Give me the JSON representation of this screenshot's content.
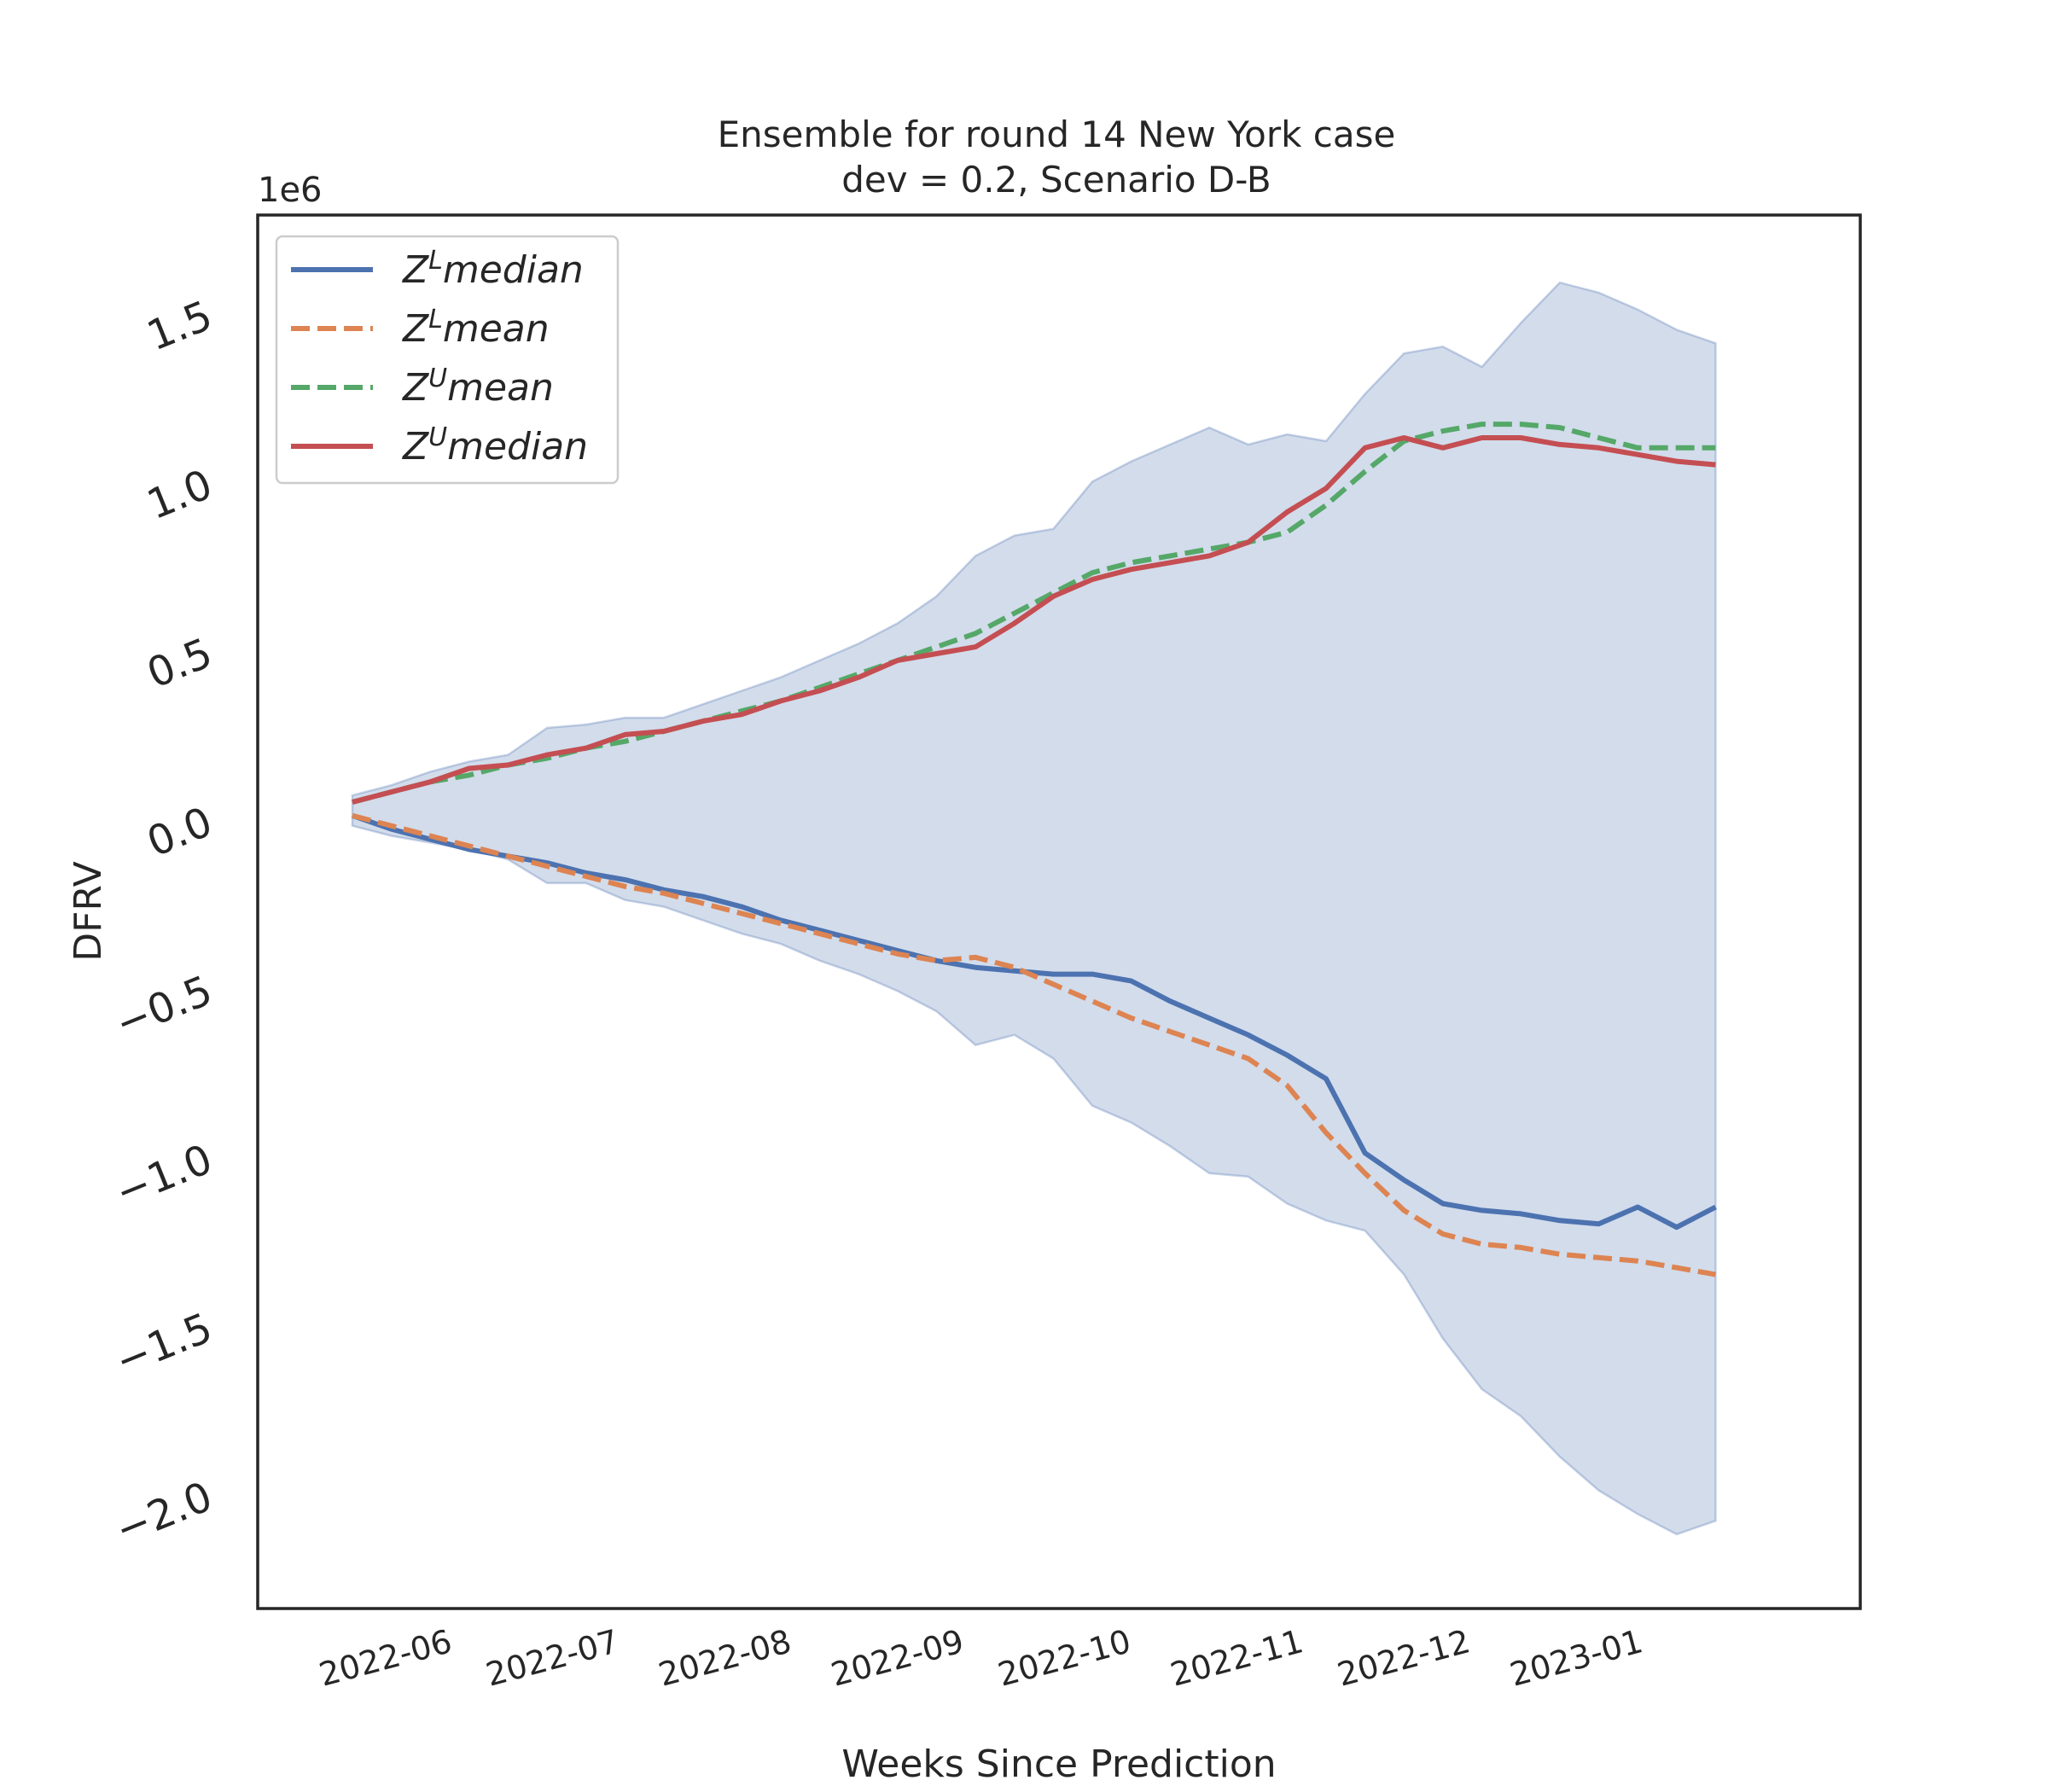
{
  "chart_data": {
    "type": "line",
    "title": "Ensemble for round 14 New York case",
    "subtitle": "dev = 0.2, Scenario D-B",
    "xlabel": "Weeks Since Prediction",
    "ylabel": "DFRV",
    "y_offset_label": "1e6",
    "y_scale": 1000000,
    "xlim": [
      "2022-04-28",
      "2023-02-10"
    ],
    "ylim": [
      -2.35,
      1.78
    ],
    "x_tick_labels": [
      "2022-06",
      "2022-07",
      "2022-08",
      "2022-09",
      "2022-10",
      "2022-11",
      "2022-12",
      "2023-01"
    ],
    "x_tick_dates": [
      "2022-06-01",
      "2022-07-01",
      "2022-08-01",
      "2022-09-01",
      "2022-10-01",
      "2022-11-01",
      "2022-12-01",
      "2023-01-01"
    ],
    "y_ticks": [
      -2.0,
      -1.5,
      -1.0,
      -0.5,
      0.0,
      0.5,
      1.0,
      1.5
    ],
    "y_tick_labels": [
      "−2.0",
      "−1.5",
      "−1.0",
      "−0.5",
      "0.0",
      "0.5",
      "1.0",
      "1.5"
    ],
    "grid": false,
    "legend_position": "top-left",
    "x": [
      "2022-05-15",
      "2022-05-22",
      "2022-05-29",
      "2022-06-05",
      "2022-06-12",
      "2022-06-19",
      "2022-06-26",
      "2022-07-03",
      "2022-07-10",
      "2022-07-17",
      "2022-07-24",
      "2022-07-31",
      "2022-08-07",
      "2022-08-14",
      "2022-08-21",
      "2022-08-28",
      "2022-09-04",
      "2022-09-11",
      "2022-09-18",
      "2022-09-25",
      "2022-10-02",
      "2022-10-09",
      "2022-10-16",
      "2022-10-23",
      "2022-10-30",
      "2022-11-06",
      "2022-11-13",
      "2022-11-20",
      "2022-11-27",
      "2022-12-04",
      "2022-12-11",
      "2022-12-18",
      "2022-12-25",
      "2023-01-01",
      "2023-01-08",
      "2023-01-15"
    ],
    "series": [
      {
        "name": "Z^L median",
        "legend_main": "Z",
        "legend_sup": "L",
        "legend_rest": "median",
        "style": "solid",
        "color": "#4c72b0",
        "values": [
          0.0,
          -0.04,
          -0.07,
          -0.1,
          -0.12,
          -0.14,
          -0.17,
          -0.19,
          -0.22,
          -0.24,
          -0.27,
          -0.31,
          -0.34,
          -0.37,
          -0.4,
          -0.43,
          -0.45,
          -0.46,
          -0.47,
          -0.47,
          -0.49,
          -0.55,
          -0.6,
          -0.65,
          -0.71,
          -0.78,
          -1.0,
          -1.08,
          -1.15,
          -1.17,
          -1.18,
          -1.2,
          -1.21,
          -1.16,
          -1.22,
          -1.16
        ]
      },
      {
        "name": "Z^L mean",
        "legend_main": "Z",
        "legend_sup": "L",
        "legend_rest": "mean",
        "style": "dashed",
        "color": "#dd8452",
        "values": [
          0.0,
          -0.03,
          -0.06,
          -0.09,
          -0.12,
          -0.15,
          -0.18,
          -0.21,
          -0.23,
          -0.26,
          -0.29,
          -0.32,
          -0.35,
          -0.38,
          -0.41,
          -0.43,
          -0.42,
          -0.45,
          -0.5,
          -0.55,
          -0.6,
          -0.64,
          -0.68,
          -0.72,
          -0.8,
          -0.94,
          -1.06,
          -1.17,
          -1.24,
          -1.27,
          -1.28,
          -1.3,
          -1.31,
          -1.32,
          -1.34,
          -1.36
        ]
      },
      {
        "name": "Z^U mean",
        "legend_main": "Z",
        "legend_sup": "U",
        "legend_rest": "mean",
        "style": "dashed",
        "color": "#55a868",
        "values": [
          0.04,
          0.07,
          0.1,
          0.12,
          0.15,
          0.17,
          0.2,
          0.22,
          0.25,
          0.28,
          0.31,
          0.34,
          0.38,
          0.42,
          0.46,
          0.5,
          0.54,
          0.6,
          0.66,
          0.72,
          0.75,
          0.77,
          0.79,
          0.81,
          0.84,
          0.92,
          1.02,
          1.11,
          1.14,
          1.16,
          1.16,
          1.15,
          1.12,
          1.09,
          1.09,
          1.09
        ]
      },
      {
        "name": "Z^U median",
        "legend_main": "Z",
        "legend_sup": "U",
        "legend_rest": "median",
        "style": "solid",
        "color": "#c44e52",
        "values": [
          0.04,
          0.07,
          0.1,
          0.14,
          0.15,
          0.18,
          0.2,
          0.24,
          0.25,
          0.28,
          0.3,
          0.34,
          0.37,
          0.41,
          0.46,
          0.48,
          0.5,
          0.57,
          0.65,
          0.7,
          0.73,
          0.75,
          0.77,
          0.81,
          0.9,
          0.97,
          1.09,
          1.12,
          1.09,
          1.12,
          1.12,
          1.1,
          1.09,
          1.07,
          1.05,
          1.04
        ]
      }
    ],
    "band": {
      "color": "#4c72b0",
      "upper": [
        0.06,
        0.09,
        0.13,
        0.16,
        0.18,
        0.26,
        0.27,
        0.29,
        0.29,
        0.33,
        0.37,
        0.41,
        0.46,
        0.51,
        0.57,
        0.65,
        0.77,
        0.83,
        0.85,
        0.99,
        1.05,
        1.1,
        1.15,
        1.1,
        1.13,
        1.11,
        1.25,
        1.37,
        1.39,
        1.33,
        1.46,
        1.58,
        1.55,
        1.5,
        1.44,
        1.4
      ],
      "lower": [
        -0.03,
        -0.06,
        -0.08,
        -0.1,
        -0.13,
        -0.2,
        -0.2,
        -0.25,
        -0.27,
        -0.31,
        -0.35,
        -0.38,
        -0.43,
        -0.47,
        -0.52,
        -0.58,
        -0.68,
        -0.65,
        -0.72,
        -0.86,
        -0.91,
        -0.98,
        -1.06,
        -1.07,
        -1.15,
        -1.2,
        -1.23,
        -1.36,
        -1.55,
        -1.7,
        -1.78,
        -1.9,
        -2.0,
        -2.07,
        -2.13,
        -2.09
      ]
    }
  }
}
